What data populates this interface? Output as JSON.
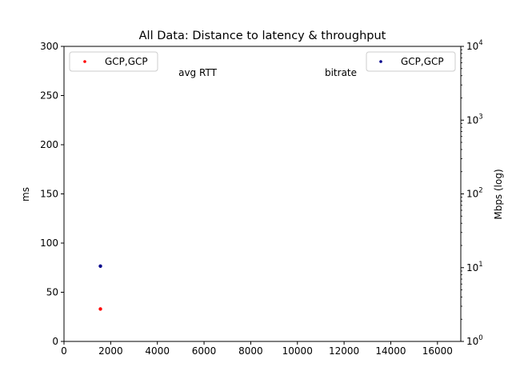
{
  "chart_data": {
    "type": "scatter",
    "title": "All Data: Distance to latency & throughput",
    "xlim": [
      0,
      17000
    ],
    "x_ticks": [
      0,
      2000,
      4000,
      6000,
      8000,
      10000,
      12000,
      14000,
      16000
    ],
    "left_axis": {
      "ylabel": "ms",
      "ylim": [
        0,
        300
      ],
      "ticks": [
        0,
        50,
        100,
        150,
        200,
        250,
        300
      ],
      "panel_label": "avg RTT",
      "series": [
        {
          "name": "GCP,GCP",
          "color": "#ff0000",
          "points": [
            {
              "x": 1560,
              "y": 33
            }
          ]
        }
      ]
    },
    "right_axis": {
      "ylabel": "Mbps (log)",
      "scale": "log",
      "ylim": [
        1,
        10000
      ],
      "ticks": [
        {
          "value": 1,
          "base": "10",
          "exp": "0"
        },
        {
          "value": 10,
          "base": "10",
          "exp": "1"
        },
        {
          "value": 100,
          "base": "10",
          "exp": "2"
        },
        {
          "value": 1000,
          "base": "10",
          "exp": "3"
        },
        {
          "value": 10000,
          "base": "10",
          "exp": "4"
        }
      ],
      "panel_label": "bitrate",
      "series": [
        {
          "name": "GCP,GCP",
          "color": "#00008b",
          "points": [
            {
              "x": 1560,
              "y": 10.5
            }
          ]
        }
      ]
    },
    "legends": {
      "left": "top-left",
      "right": "top-right"
    },
    "grid": false
  }
}
